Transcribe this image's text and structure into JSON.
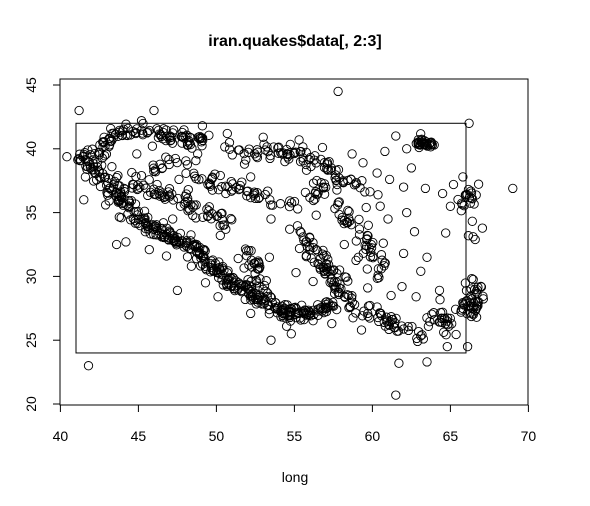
{
  "chart_data": {
    "type": "scatter",
    "title": "iran.quakes$data[, 2:3]",
    "xlabel": "long",
    "ylabel": "",
    "xlim": [
      41,
      70
    ],
    "ylim": [
      20,
      45
    ],
    "xticks": [
      "40",
      "45",
      "50",
      "55",
      "60",
      "65",
      "70"
    ],
    "yticks": [
      "20",
      "25",
      "30",
      "35",
      "40",
      "45"
    ],
    "xtick_values": [
      40,
      45,
      50,
      55,
      60,
      65,
      70
    ],
    "ytick_values": [
      20,
      25,
      30,
      35,
      40,
      45
    ],
    "marker": "open-circle",
    "grid": false,
    "bounding_rectangle": {
      "x_min": 41,
      "x_max": 66,
      "y_min": 24,
      "y_max": 42
    },
    "point_clusters": [
      {
        "path": [
          [
            41.2,
            39.3
          ],
          [
            42.5,
            39.8
          ],
          [
            43.5,
            41.2
          ],
          [
            44.3,
            41.4
          ],
          [
            45.5,
            41.3
          ],
          [
            47,
            40.9
          ],
          [
            48.5,
            40.6
          ],
          [
            49.5,
            40.8
          ]
        ],
        "spread": 0.5,
        "count": 110
      },
      {
        "path": [
          [
            42,
            39
          ],
          [
            43,
            37.5
          ],
          [
            44,
            36
          ],
          [
            45,
            34.5
          ],
          [
            46.5,
            33.3
          ],
          [
            48,
            32.6
          ],
          [
            49,
            31.7
          ],
          [
            50.3,
            30.2
          ],
          [
            51.5,
            29.2
          ],
          [
            52.7,
            28.2
          ],
          [
            54,
            27.3
          ],
          [
            55.5,
            27
          ],
          [
            57,
            27.5
          ],
          [
            57.5,
            28
          ]
        ],
        "spread": 0.5,
        "count": 380
      },
      {
        "path": [
          [
            44.5,
            37.5
          ],
          [
            46,
            36.8
          ],
          [
            47.5,
            36
          ],
          [
            49,
            35.2
          ],
          [
            50,
            34.5
          ],
          [
            51,
            34
          ]
        ],
        "spread": 0.5,
        "count": 70
      },
      {
        "path": [
          [
            46,
            38.8
          ],
          [
            48,
            38.5
          ],
          [
            50,
            37.3
          ],
          [
            52,
            36.5
          ],
          [
            54,
            36
          ],
          [
            56,
            36.5
          ],
          [
            58,
            37.5
          ],
          [
            60,
            36.5
          ]
        ],
        "spread": 0.55,
        "count": 100
      },
      {
        "path": [
          [
            50.5,
            40.2
          ],
          [
            52,
            39.5
          ],
          [
            54,
            39.8
          ],
          [
            55.5,
            39.2
          ],
          [
            57,
            38.8
          ],
          [
            58,
            38
          ]
        ],
        "spread": 0.5,
        "count": 70
      },
      {
        "path": [
          [
            55.5,
            33.5
          ],
          [
            56.5,
            31.5
          ],
          [
            57.5,
            30
          ],
          [
            58,
            29
          ]
        ],
        "spread": 0.5,
        "count": 60
      },
      {
        "path": [
          [
            57.5,
            36
          ],
          [
            58.5,
            34.5
          ],
          [
            59.5,
            33
          ],
          [
            60,
            31.5
          ],
          [
            60.5,
            30
          ]
        ],
        "spread": 0.55,
        "count": 50
      },
      {
        "path": [
          [
            57.5,
            29
          ],
          [
            59,
            27.5
          ],
          [
            61,
            26.5
          ],
          [
            62.5,
            25.5
          ],
          [
            63.5,
            25.2
          ]
        ],
        "spread": 0.55,
        "count": 60
      },
      {
        "path": [
          [
            63,
            40.4
          ],
          [
            63.8,
            40.4
          ]
        ],
        "spread": 0.25,
        "count": 35
      },
      {
        "path": [
          [
            65.5,
            28
          ],
          [
            66.5,
            27
          ],
          [
            66.5,
            30
          ]
        ],
        "spread": 0.5,
        "count": 50
      },
      {
        "path": [
          [
            64,
            27
          ],
          [
            65,
            26
          ]
        ],
        "spread": 0.6,
        "count": 25
      },
      {
        "path": [
          [
            52,
            32
          ],
          [
            52.5,
            30
          ],
          [
            53,
            29
          ]
        ],
        "spread": 0.6,
        "count": 30
      },
      {
        "path": [
          [
            65.5,
            35
          ],
          [
            66.5,
            38
          ],
          [
            66.5,
            33
          ]
        ],
        "spread": 0.6,
        "count": 25
      }
    ],
    "scattered_points": [
      [
        41.2,
        43
      ],
      [
        57.8,
        44.5
      ],
      [
        41.8,
        23
      ],
      [
        44.4,
        27
      ],
      [
        45.2,
        42.2
      ],
      [
        46,
        43
      ],
      [
        69,
        36.9
      ],
      [
        61.5,
        20.7
      ],
      [
        66.2,
        42
      ],
      [
        62.5,
        38.5
      ],
      [
        64.5,
        36.5
      ],
      [
        63.5,
        31.5
      ],
      [
        61,
        34.5
      ],
      [
        62,
        37
      ],
      [
        44.2,
        32.7
      ],
      [
        43.6,
        32.5
      ],
      [
        47.5,
        28.9
      ],
      [
        53.5,
        25
      ],
      [
        54.8,
        25.5
      ],
      [
        61.7,
        23.2
      ],
      [
        63.5,
        23.3
      ],
      [
        64.8,
        24.5
      ],
      [
        62.7,
        33.5
      ],
      [
        60.5,
        35.5
      ],
      [
        62.2,
        35
      ],
      [
        61.5,
        41
      ],
      [
        62.2,
        40
      ],
      [
        60.8,
        39.8
      ],
      [
        64.8,
        26.5
      ],
      [
        66.1,
        24.5
      ],
      [
        65.8,
        37.8
      ],
      [
        48.2,
        36.8
      ],
      [
        49.6,
        37.2
      ],
      [
        50.6,
        36.5
      ],
      [
        52.2,
        37.8
      ],
      [
        53.5,
        34.5
      ],
      [
        54.7,
        33.7
      ],
      [
        58.2,
        32.5
      ],
      [
        59.1,
        31.5
      ],
      [
        57.9,
        30.5
      ],
      [
        56.2,
        29.6
      ],
      [
        55.1,
        30.3
      ],
      [
        53.4,
        31.5
      ],
      [
        51.4,
        31.4
      ],
      [
        50.6,
        33.7
      ],
      [
        47.2,
        34.5
      ],
      [
        46.1,
        38.2
      ],
      [
        45.9,
        40.2
      ],
      [
        48.8,
        39.6
      ],
      [
        51.8,
        38.8
      ],
      [
        56.4,
        34.8
      ],
      [
        59.6,
        35.4
      ],
      [
        60.7,
        32.6
      ],
      [
        61.9,
        29.2
      ],
      [
        62.8,
        28.4
      ],
      [
        64.3,
        28.9
      ],
      [
        61.2,
        28.5
      ],
      [
        60.3,
        27.6
      ],
      [
        59.7,
        29.1
      ],
      [
        41.5,
        36
      ],
      [
        41.6,
        37.8
      ],
      [
        42.8,
        40.9
      ],
      [
        43.3,
        38.6
      ],
      [
        44.9,
        39.6
      ],
      [
        45.2,
        37.9
      ],
      [
        47.6,
        37.6
      ],
      [
        49.1,
        41.8
      ],
      [
        50.7,
        41.2
      ],
      [
        53,
        40.9
      ],
      [
        55.3,
        40.7
      ],
      [
        56.8,
        40.1
      ],
      [
        58.7,
        39.6
      ],
      [
        59.4,
        38.9
      ],
      [
        60.3,
        38.1
      ],
      [
        61.1,
        37.6
      ],
      [
        63.4,
        36.9
      ],
      [
        65.2,
        37.2
      ],
      [
        64.7,
        33.4
      ],
      [
        63.1,
        30.4
      ],
      [
        62,
        31.8
      ],
      [
        60.9,
        26.8
      ],
      [
        59.3,
        25.8
      ],
      [
        57.4,
        26.3
      ],
      [
        54.5,
        26.1
      ],
      [
        52.2,
        27.1
      ],
      [
        50.1,
        28.4
      ],
      [
        49.3,
        29.5
      ],
      [
        48.4,
        30.8
      ],
      [
        46.8,
        31.6
      ],
      [
        45.7,
        32.1
      ],
      [
        43.9,
        34.6
      ],
      [
        42.9,
        35.6
      ],
      [
        45.4,
        35.1
      ],
      [
        46.6,
        34.2
      ]
    ]
  }
}
